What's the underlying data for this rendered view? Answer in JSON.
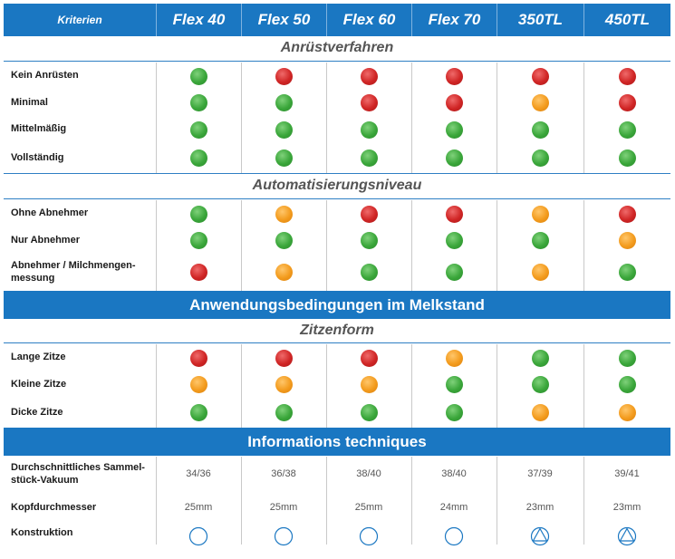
{
  "header": {
    "criteria_label": "Kriterien",
    "columns": [
      "Flex 40",
      "Flex 50",
      "Flex 60",
      "Flex 70",
      "350TL",
      "450TL"
    ]
  },
  "sections": {
    "anruest": {
      "title": "Anrüstverfahren",
      "rows": [
        {
          "label": "Kein Anrüsten",
          "values": [
            "green",
            "red",
            "red",
            "red",
            "red",
            "red"
          ]
        },
        {
          "label": "Minimal",
          "values": [
            "green",
            "green",
            "red",
            "red",
            "orange",
            "red"
          ]
        },
        {
          "label": "Mittelmäßig",
          "values": [
            "green",
            "green",
            "green",
            "green",
            "green",
            "green"
          ]
        },
        {
          "label": "Vollständig",
          "values": [
            "green",
            "green",
            "green",
            "green",
            "green",
            "green"
          ]
        }
      ]
    },
    "automatisierung": {
      "title": "Automatisierungsniveau",
      "rows": [
        {
          "label": "Ohne Abnehmer",
          "values": [
            "green",
            "orange",
            "red",
            "red",
            "orange",
            "red"
          ]
        },
        {
          "label": "Nur Abnehmer",
          "values": [
            "green",
            "green",
            "green",
            "green",
            "green",
            "orange"
          ]
        },
        {
          "label": "Abnehmer / Milchmengen-\nmessung",
          "values": [
            "red",
            "orange",
            "green",
            "green",
            "orange",
            "green"
          ]
        }
      ]
    },
    "anwendung_band": "Anwendungsbedingungen im Melkstand",
    "zitzen": {
      "title": "Zitzenform",
      "rows": [
        {
          "label": "Lange Zitze",
          "values": [
            "red",
            "red",
            "red",
            "orange",
            "green",
            "green"
          ]
        },
        {
          "label": "Kleine Zitze",
          "values": [
            "orange",
            "orange",
            "orange",
            "green",
            "green",
            "green"
          ]
        },
        {
          "label": "Dicke Zitze",
          "values": [
            "green",
            "green",
            "green",
            "green",
            "orange",
            "orange"
          ]
        }
      ]
    },
    "info_band": "Informations techniques",
    "info": {
      "rows": [
        {
          "label": "Durchschnittliches Sammel-\nstück-Vakuum",
          "values": [
            "34/36",
            "36/38",
            "38/40",
            "38/40",
            "37/39",
            "39/41"
          ]
        },
        {
          "label": "Kopfdurchmesser",
          "values": [
            "25mm",
            "25mm",
            "25mm",
            "24mm",
            "23mm",
            "23mm"
          ]
        },
        {
          "label": "Konstruktion",
          "values": [
            "circle-icon",
            "circle-icon",
            "circle-icon",
            "circle-icon",
            "triangle-circle-icon",
            "triangle-circle-icon"
          ]
        }
      ]
    }
  },
  "colors": {
    "blue": "#1a77c2",
    "green": "#3aa63a",
    "red": "#d02525",
    "orange": "#f39b1d"
  }
}
